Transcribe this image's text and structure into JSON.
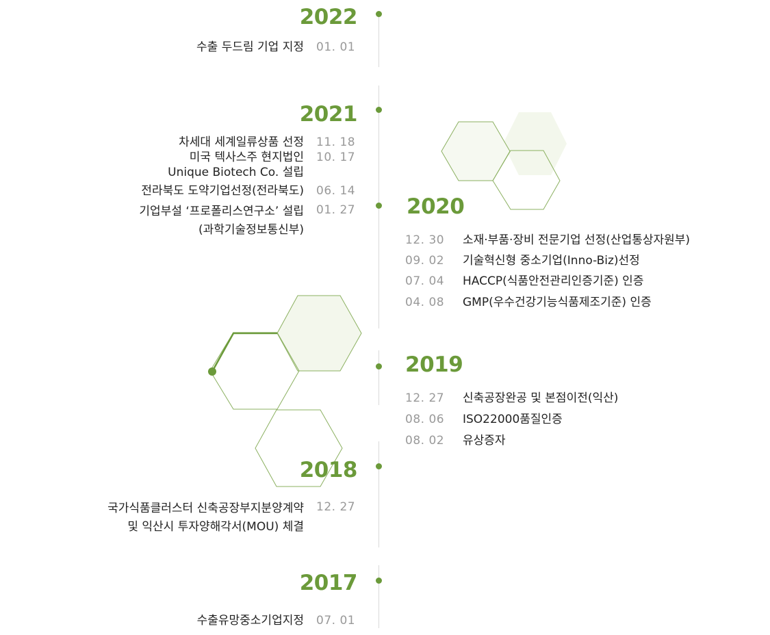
{
  "colors": {
    "accent": "#6b9a3a",
    "line": "#d9d9d9",
    "date": "#999999",
    "text": "#222222",
    "hex_fill": "#f3f7ec"
  },
  "timeline": {
    "y2022": {
      "year": "2022",
      "items": [
        {
          "text": "수출 두드림 기업 지정",
          "date": "01. 01"
        }
      ]
    },
    "y2021": {
      "year": "2021",
      "items": [
        {
          "text": "차세대 세계일류상품 선정",
          "date": "11. 18"
        },
        {
          "text": "미국 텍사스주 현지법인",
          "text2": "Unique Biotech Co. 설립",
          "date": "10. 17"
        },
        {
          "text": "전라북도 도약기업선정(전라북도)",
          "date": "06. 14"
        },
        {
          "text": "기업부설 ‘프로폴리스연구소’ 설립",
          "text2": "(과학기술정보통신부)",
          "date": "01. 27"
        }
      ]
    },
    "y2020": {
      "year": "2020",
      "items": [
        {
          "date": "12. 30",
          "text": "소재·부품·장비 전문기업 선정(산업통상자원부)"
        },
        {
          "date": "09. 02",
          "text": "기술혁신형 중소기업(Inno-Biz)선정"
        },
        {
          "date": "07. 04",
          "text": "HACCP(식품안전관리인증기준) 인증"
        },
        {
          "date": "04. 08",
          "text": "GMP(우수건강기능식품제조기준) 인증"
        }
      ]
    },
    "y2019": {
      "year": "2019",
      "items": [
        {
          "date": "12. 27",
          "text": "신축공장완공 및 본점이전(익산)"
        },
        {
          "date": "08. 06",
          "text": "ISO22000품질인증"
        },
        {
          "date": "08. 02",
          "text": "유상증자"
        }
      ]
    },
    "y2018": {
      "year": "2018",
      "items": [
        {
          "text": "국가식품클러스터 신축공장부지분양계약",
          "text2": "및 익산시 투자양해각서(MOU) 체결",
          "date": "12. 27"
        }
      ]
    },
    "y2017": {
      "year": "2017",
      "items": [
        {
          "text": "수출유망중소기업지정",
          "date": "07. 01"
        }
      ]
    }
  }
}
